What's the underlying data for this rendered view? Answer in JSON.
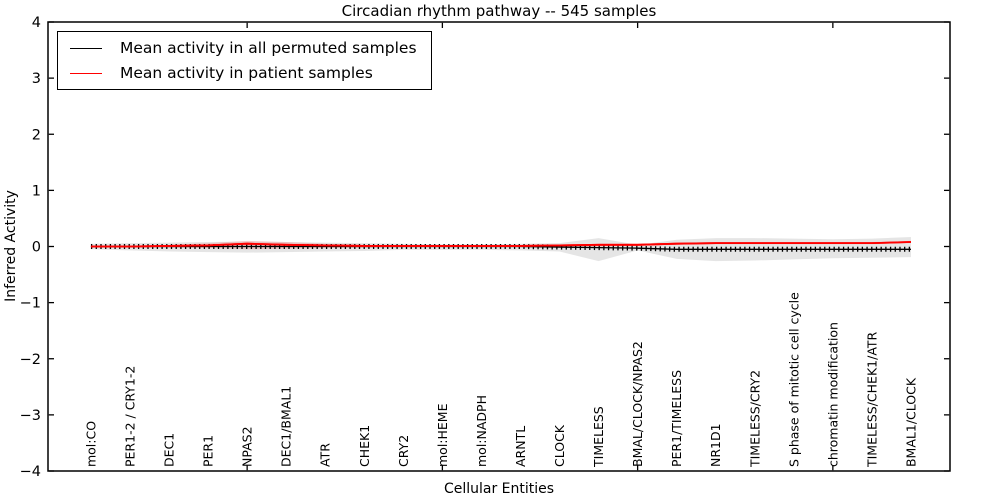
{
  "figure": {
    "title": "Circadian rhythm pathway -- 545 samples",
    "xlabel": "Cellular Entities",
    "ylabel": "Inferred Activity"
  },
  "legend": {
    "items": [
      {
        "label": "Mean activity in all permuted samples",
        "color": "#000000"
      },
      {
        "label": "Mean activity in patient samples",
        "color": "#ff0000"
      }
    ]
  },
  "chart_data": {
    "type": "line",
    "title": "Circadian rhythm pathway -- 545 samples",
    "xlabel": "Cellular Entities",
    "ylabel": "Inferred Activity",
    "categories": [
      "mol:CO",
      "PER1-2 / CRY1-2",
      "DEC1",
      "PER1",
      "NPAS2",
      "DEC1/BMAL1",
      "ATR",
      "CHEK1",
      "CRY2",
      "mol:HEME",
      "mol:NADPH",
      "ARNTL",
      "CLOCK",
      "TIMELESS",
      "BMAL/CLOCK/NPAS2",
      "PER1/TIMELESS",
      "NR1D1",
      "TIMELESS/CRY2",
      "S phase of mitotic cell cycle",
      "chromatin modification",
      "TIMELESS/CHEK1/ATR",
      "BMAL1/CLOCK"
    ],
    "series": [
      {
        "name": "Mean activity in all permuted samples",
        "color": "#000000",
        "marker": "tick",
        "values": [
          0,
          0,
          0,
          0,
          0,
          0,
          0,
          0,
          0,
          0,
          0,
          0,
          -0.01,
          -0.02,
          -0.03,
          -0.05,
          -0.05,
          -0.05,
          -0.05,
          -0.05,
          -0.05,
          -0.05
        ]
      },
      {
        "name": "Mean activity in patient samples",
        "color": "#ff0000",
        "marker": "none",
        "values": [
          0,
          0,
          0.01,
          0.02,
          0.05,
          0.03,
          0.02,
          0.01,
          0.01,
          0.01,
          0.01,
          0.01,
          0.02,
          0.03,
          0.03,
          0.05,
          0.06,
          0.06,
          0.06,
          0.06,
          0.06,
          0.08
        ]
      }
    ],
    "bands": [
      {
        "name": "permuted-samples-spread",
        "color": "rgba(0,0,0,0.10)",
        "upper": [
          0.05,
          0.06,
          0.07,
          0.08,
          0.09,
          0.08,
          0.07,
          0.06,
          0.05,
          0.04,
          0.04,
          0.05,
          0.06,
          0.15,
          0.03,
          0.12,
          0.15,
          0.15,
          0.14,
          0.13,
          0.14,
          0.17
        ],
        "lower": [
          -0.05,
          -0.07,
          -0.09,
          -0.1,
          -0.11,
          -0.1,
          -0.09,
          -0.08,
          -0.06,
          -0.06,
          -0.06,
          -0.07,
          -0.09,
          -0.26,
          -0.07,
          -0.22,
          -0.26,
          -0.25,
          -0.23,
          -0.21,
          -0.2,
          -0.19
        ]
      },
      {
        "name": "patient-samples-spread",
        "color": "rgba(255,0,0,0.16)",
        "upper": [
          0.01,
          0.01,
          0.03,
          0.06,
          0.1,
          0.08,
          0.05,
          0.03,
          0.02,
          0.02,
          0.02,
          0.02,
          0.03,
          0.04,
          0.05,
          0.07,
          0.08,
          0.08,
          0.08,
          0.08,
          0.08,
          0.1
        ],
        "lower": [
          -0.01,
          -0.01,
          -0.02,
          -0.03,
          -0.05,
          -0.04,
          -0.03,
          -0.02,
          -0.01,
          -0.01,
          -0.01,
          -0.01,
          -0.01,
          0.0,
          0.01,
          0.03,
          0.04,
          0.04,
          0.04,
          0.04,
          0.04,
          0.06
        ]
      }
    ],
    "ylim": [
      -4,
      4
    ],
    "yticks": [
      -4,
      -3,
      -2,
      -1,
      0,
      1,
      2,
      3,
      4
    ],
    "xtick_positions": [
      5,
      10,
      15,
      20
    ],
    "grid": false,
    "legend_position": "upper left",
    "frame_color": "#000000"
  }
}
